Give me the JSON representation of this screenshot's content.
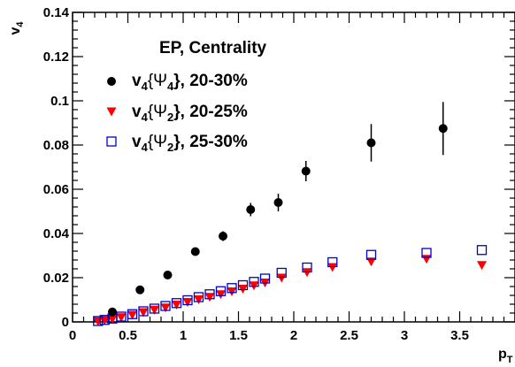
{
  "chart_data": {
    "type": "scatter",
    "xlim": [
      0,
      4.0
    ],
    "ylim": [
      0,
      0.14
    ],
    "xticks": [
      0,
      0.5,
      1,
      1.5,
      2,
      2.5,
      3,
      3.5
    ],
    "xtick_labels": [
      "0",
      "0.5",
      "1",
      "1.5",
      "2",
      "2.5",
      "3",
      "3.5"
    ],
    "yticks": [
      0,
      0.02,
      0.04,
      0.06,
      0.08,
      0.1,
      0.12,
      0.14
    ],
    "ytick_labels": [
      "0",
      "0.02",
      "0.04",
      "0.06",
      "0.08",
      "0.1",
      "0.12",
      "0.14"
    ],
    "xlabel": {
      "main": "p",
      "sub": "T"
    },
    "ylabel": {
      "main": "v",
      "sub": "4"
    },
    "grid": false,
    "legend_position": "top-left",
    "legend": {
      "header": "EP,   Centrality",
      "entries": [
        {
          "pre": "v",
          "sub1": "4",
          "mid": "{Ψ",
          "sub2": "4",
          "post": "},  20-30%"
        },
        {
          "pre": "v",
          "sub1": "4",
          "mid": "{Ψ",
          "sub2": "2",
          "post": "},  20-25%"
        },
        {
          "pre": "v",
          "sub1": "4",
          "mid": "{Ψ",
          "sub2": "2",
          "post": "},  25-30%"
        }
      ]
    },
    "series": [
      {
        "marker": "filled-circle",
        "color": "#000000",
        "x": [
          0.36,
          0.61,
          0.86,
          1.11,
          1.36,
          1.61,
          1.86,
          2.11,
          2.7,
          3.35
        ],
        "y": [
          0.0045,
          0.0145,
          0.0212,
          0.0318,
          0.0388,
          0.0508,
          0.054,
          0.0682,
          0.081,
          0.0875
        ],
        "err": [
          0.0008,
          0.001,
          0.0012,
          0.0014,
          0.0022,
          0.003,
          0.004,
          0.0046,
          0.0085,
          0.012
        ]
      },
      {
        "marker": "down-triangle",
        "color": "#ff0000",
        "x": [
          0.23,
          0.29,
          0.36,
          0.44,
          0.54,
          0.64,
          0.74,
          0.84,
          0.94,
          1.04,
          1.14,
          1.24,
          1.34,
          1.44,
          1.54,
          1.64,
          1.74,
          1.89,
          2.12,
          2.35,
          2.7,
          3.2,
          3.7
        ],
        "y": [
          0.0003,
          0.0008,
          0.0013,
          0.0021,
          0.0032,
          0.0044,
          0.0055,
          0.0065,
          0.0078,
          0.009,
          0.0102,
          0.0113,
          0.0125,
          0.0138,
          0.015,
          0.0165,
          0.0178,
          0.02,
          0.0225,
          0.0248,
          0.0273,
          0.0285,
          0.0257
        ]
      },
      {
        "marker": "open-square",
        "color": "#0000cc",
        "x": [
          0.23,
          0.29,
          0.36,
          0.44,
          0.54,
          0.64,
          0.74,
          0.84,
          0.94,
          1.04,
          1.14,
          1.24,
          1.34,
          1.44,
          1.54,
          1.64,
          1.74,
          1.89,
          2.12,
          2.35,
          2.7,
          3.2,
          3.7
        ],
        "y": [
          0.0004,
          0.0009,
          0.0015,
          0.0024,
          0.0035,
          0.0048,
          0.006,
          0.0072,
          0.0085,
          0.0098,
          0.0112,
          0.0125,
          0.0139,
          0.0153,
          0.0166,
          0.0181,
          0.0196,
          0.0222,
          0.0246,
          0.027,
          0.0303,
          0.0312,
          0.0325
        ]
      }
    ]
  }
}
